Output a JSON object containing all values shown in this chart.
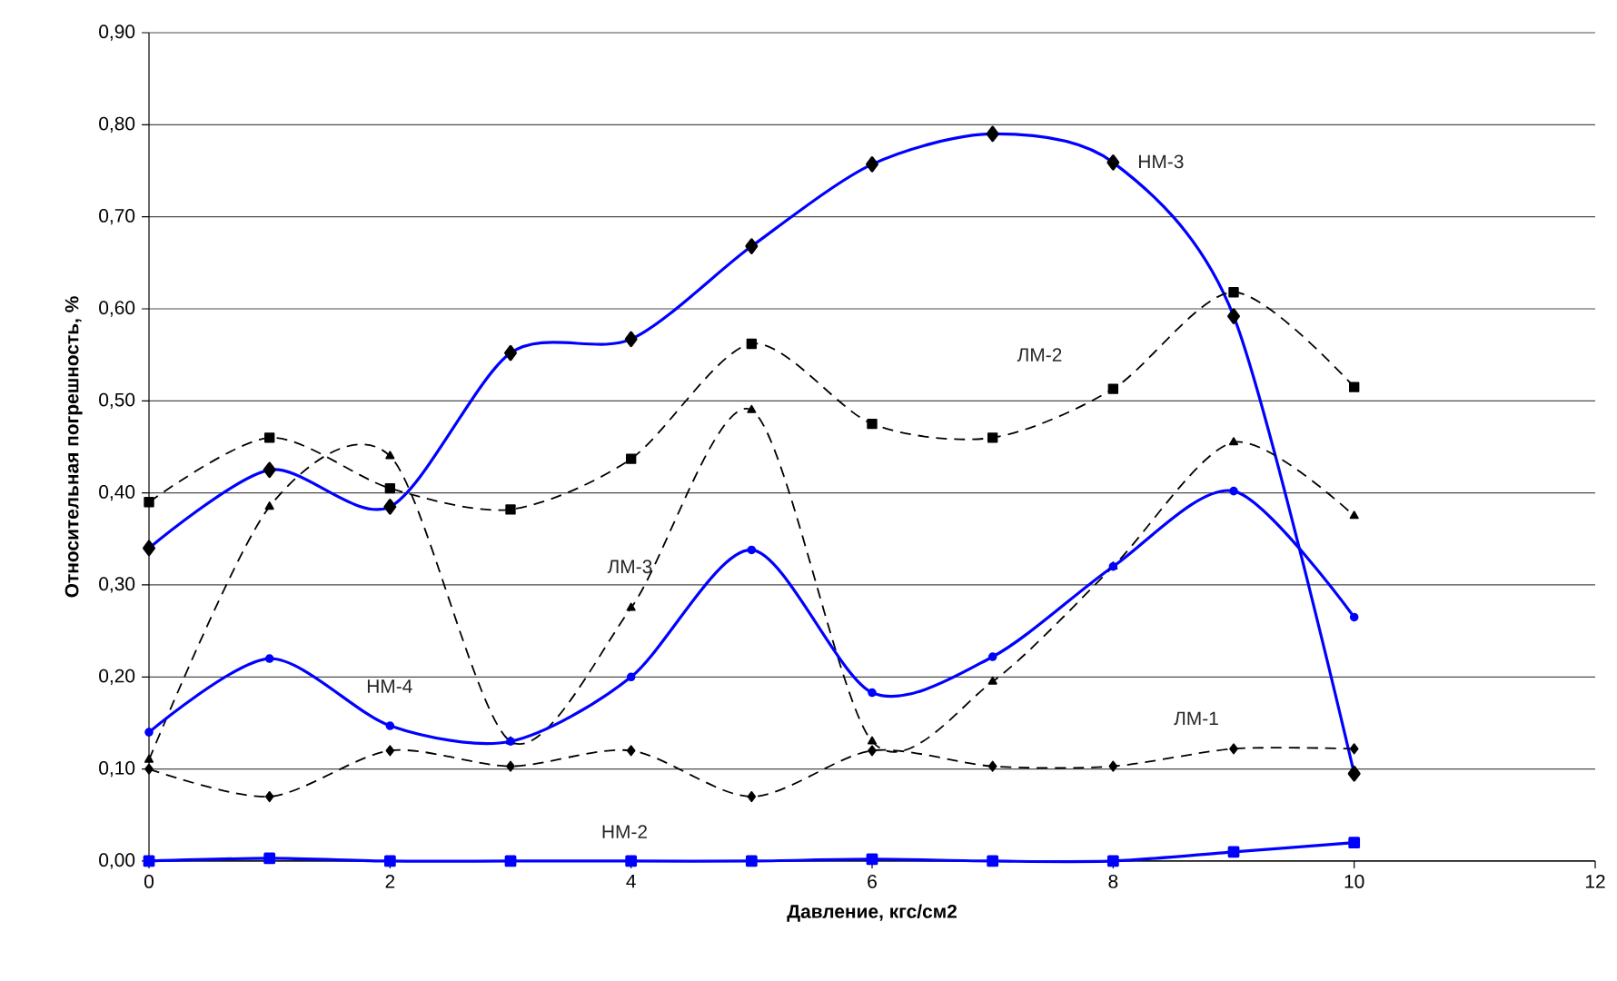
{
  "chart_data": {
    "type": "line",
    "xlabel": "Давление, кгс/см2",
    "ylabel": "Относительная погрешность, %",
    "x": [
      0,
      1,
      2,
      3,
      4,
      5,
      6,
      7,
      8,
      9,
      10
    ],
    "series": [
      {
        "name": "НМ-3",
        "color": "#0000ff",
        "marker": "diamond",
        "line_style": "solid",
        "values": [
          0.34,
          0.425,
          0.385,
          0.552,
          0.567,
          0.668,
          0.757,
          0.79,
          0.759,
          0.592,
          0.095
        ]
      },
      {
        "name": "ЛМ-2",
        "color": "#000000",
        "marker": "square",
        "line_style": "dashed",
        "values": [
          0.39,
          0.46,
          0.405,
          0.382,
          0.437,
          0.562,
          0.475,
          0.46,
          0.513,
          0.618,
          0.515
        ]
      },
      {
        "name": "ЛМ-3",
        "color": "#000000",
        "marker": "triangle",
        "line_style": "dashed",
        "values": [
          0.11,
          0.385,
          0.44,
          0.13,
          0.275,
          0.49,
          0.13,
          0.195,
          0.32,
          0.455,
          0.375
        ]
      },
      {
        "name": "НМ-4",
        "color": "#0000ff",
        "marker": "circle",
        "line_style": "solid",
        "values": [
          0.14,
          0.22,
          0.147,
          0.13,
          0.2,
          0.338,
          0.183,
          0.222,
          0.32,
          0.402,
          0.265
        ]
      },
      {
        "name": "ЛМ-1",
        "color": "#000000",
        "marker": "diamond",
        "line_style": "dashed",
        "values": [
          0.1,
          0.07,
          0.12,
          0.103,
          0.12,
          0.07,
          0.12,
          0.103,
          0.103,
          0.122,
          0.122
        ]
      },
      {
        "name": "НМ-2",
        "color": "#0000ff",
        "marker": "square",
        "line_style": "solid",
        "values": [
          0.0,
          0.003,
          0.0,
          0.0,
          0.0,
          0.0,
          0.002,
          0.0,
          0.0,
          0.01,
          0.02
        ]
      }
    ],
    "xlim": [
      0,
      12
    ],
    "xticks": [
      0,
      2,
      4,
      6,
      8,
      10,
      12
    ],
    "ylim": [
      0,
      0.9
    ],
    "yticks": [
      {
        "value": 0,
        "label": "0,00"
      },
      {
        "value": 0.1,
        "label": "0,10"
      },
      {
        "value": 0.2,
        "label": "0,20"
      },
      {
        "value": 0.3,
        "label": "0,30"
      },
      {
        "value": 0.4,
        "label": "0,40"
      },
      {
        "value": 0.5,
        "label": "0,50"
      },
      {
        "value": 0.6,
        "label": "0,60"
      },
      {
        "value": 0.7,
        "label": "0,70"
      },
      {
        "value": 0.8,
        "label": "0,80"
      },
      {
        "value": 0.9,
        "label": "0,90"
      }
    ],
    "grid": "y"
  }
}
